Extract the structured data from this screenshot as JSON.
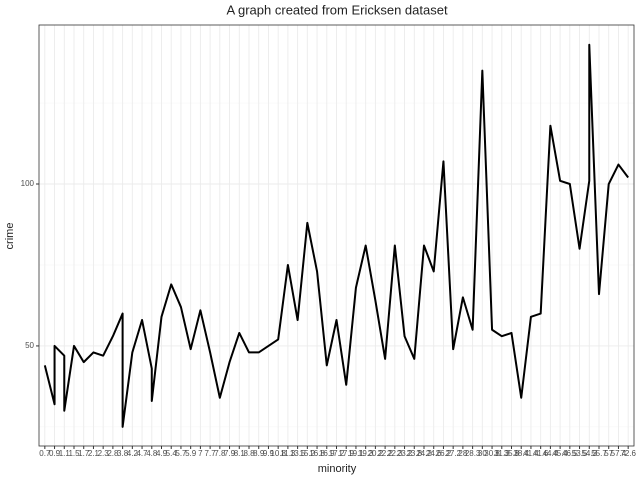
{
  "chart_data": {
    "type": "line",
    "title": "A graph created from Ericksen dataset",
    "x_label": "minority",
    "y_label": "crime",
    "x": [
      "0.7",
      "0.9",
      "0.9",
      "1.1",
      "1.1",
      "1.5",
      "1.7",
      "2.1",
      "2.3",
      "2.8",
      "3.8",
      "3.8",
      "4.2",
      "4.7",
      "4.8",
      "4.8",
      "4.9",
      "5.4",
      "5.7",
      "5.9",
      "7",
      "7.7",
      "7.8",
      "7.9",
      "8.1",
      "8.8",
      "8.9",
      "9.9",
      "10.8",
      "11.3",
      "13.5",
      "15.2",
      "16.8",
      "16.9",
      "17.2",
      "17.9",
      "19.1",
      "19.3",
      "20.2",
      "22.2",
      "22.3",
      "23.2",
      "23.8",
      "24.2",
      "24.6",
      "26.2",
      "27.2",
      "28",
      "28.3",
      "30",
      "30.8",
      "31.3",
      "35.8",
      "38.4",
      "41.4",
      "41.6",
      "44.4",
      "45.4",
      "46.5",
      "53.5",
      "54.3",
      "54.3",
      "55.7",
      "57",
      "57.4",
      "72.6"
    ],
    "values": [
      44,
      32,
      50,
      47,
      30,
      50,
      45,
      48,
      47,
      53,
      60,
      25,
      48,
      58,
      43,
      33,
      59,
      69,
      62,
      49,
      61,
      48,
      34,
      45,
      54,
      48,
      48,
      50,
      52,
      75,
      58,
      88,
      73,
      44,
      58,
      38,
      68,
      81,
      64,
      46,
      81,
      53,
      46,
      81,
      73,
      107,
      49,
      65,
      55,
      135,
      55,
      53,
      54,
      34,
      59,
      60,
      118,
      101,
      100,
      80,
      101,
      143,
      66,
      100,
      106,
      102
    ],
    "color": "#000000",
    "ylim": [
      19.1,
      149.1
    ],
    "yticks": [
      50,
      100
    ],
    "grid": true
  }
}
